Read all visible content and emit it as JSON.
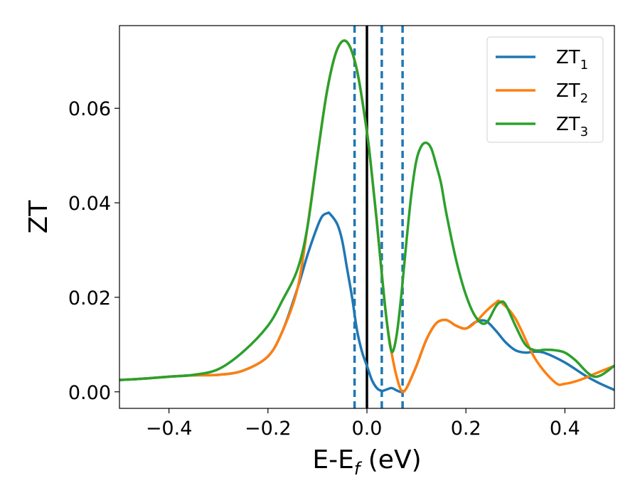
{
  "chart_data": {
    "type": "line",
    "xlabel_main": "E-E",
    "xlabel_sub": "f",
    "xlabel_unit": " (eV)",
    "ylabel": "ZT",
    "xlim": [
      -0.5,
      0.5
    ],
    "ylim": [
      -0.0035,
      0.0775
    ],
    "xticks": [
      -0.4,
      -0.2,
      0.0,
      0.2,
      0.4
    ],
    "xtick_labels": [
      "−0.4",
      "−0.2",
      "0.0",
      "0.2",
      "0.4"
    ],
    "yticks": [
      0.0,
      0.02,
      0.04,
      0.06
    ],
    "ytick_labels": [
      "0.00",
      "0.02",
      "0.04",
      "0.06"
    ],
    "grid": false,
    "legend_position": "top-right",
    "vlines": [
      {
        "x": 0.0,
        "style": "solid",
        "color": "#000000"
      },
      {
        "x": -0.025,
        "style": "dashed",
        "color": "#1f77b4"
      },
      {
        "x": 0.03,
        "style": "dashed",
        "color": "#1f77b4"
      },
      {
        "x": 0.072,
        "style": "dashed",
        "color": "#1f77b4"
      }
    ],
    "series": [
      {
        "name_main": "ZT",
        "name_sub": "1",
        "color": "#1f77b4",
        "x": [
          -0.5,
          -0.45,
          -0.4,
          -0.35,
          -0.3,
          -0.25,
          -0.2,
          -0.17,
          -0.14,
          -0.12,
          -0.1,
          -0.09,
          -0.08,
          -0.075,
          -0.06,
          -0.05,
          -0.04,
          -0.03,
          -0.02,
          -0.01,
          0.0,
          0.01,
          0.02,
          0.03,
          0.04,
          0.05,
          0.06,
          0.07,
          0.08,
          0.1,
          0.12,
          0.14,
          0.16,
          0.18,
          0.2,
          0.22,
          0.24,
          0.26,
          0.28,
          0.3,
          0.32,
          0.34,
          0.36,
          0.4,
          0.44,
          0.47,
          0.5
        ],
        "y": [
          0.0025,
          0.0028,
          0.0032,
          0.0035,
          0.0036,
          0.0045,
          0.0075,
          0.013,
          0.022,
          0.029,
          0.035,
          0.0372,
          0.0378,
          0.0377,
          0.0355,
          0.032,
          0.026,
          0.02,
          0.013,
          0.0085,
          0.0055,
          0.0025,
          0.0008,
          0.0002,
          0.0005,
          0.0008,
          0.0003,
          0.0,
          0.0008,
          0.0055,
          0.011,
          0.0145,
          0.0152,
          0.014,
          0.0134,
          0.0148,
          0.015,
          0.013,
          0.0105,
          0.0088,
          0.0083,
          0.0085,
          0.0082,
          0.0062,
          0.0035,
          0.0018,
          0.0004
        ]
      },
      {
        "name_main": "ZT",
        "name_sub": "2",
        "color": "#ff7f0e",
        "x": [
          -0.5,
          -0.45,
          -0.4,
          -0.35,
          -0.3,
          -0.25,
          -0.2,
          -0.17,
          -0.14,
          -0.12,
          -0.1,
          -0.08,
          -0.06,
          -0.04,
          -0.02,
          0.0,
          0.01,
          0.02,
          0.03,
          0.04,
          0.05,
          0.06,
          0.07,
          0.08,
          0.1,
          0.12,
          0.14,
          0.16,
          0.18,
          0.2,
          0.22,
          0.24,
          0.26,
          0.27,
          0.3,
          0.34,
          0.38,
          0.4,
          0.43,
          0.46,
          0.5
        ],
        "y": [
          0.0025,
          0.0028,
          0.0032,
          0.0035,
          0.0036,
          0.0045,
          0.0075,
          0.013,
          0.022,
          0.035,
          0.05,
          0.064,
          0.0725,
          0.074,
          0.068,
          0.055,
          0.046,
          0.036,
          0.025,
          0.015,
          0.0082,
          0.0032,
          0.0002,
          0.0008,
          0.0055,
          0.011,
          0.0145,
          0.0152,
          0.014,
          0.0134,
          0.0148,
          0.017,
          0.0188,
          0.019,
          0.0155,
          0.007,
          0.002,
          0.0017,
          0.0025,
          0.0038,
          0.0055
        ]
      },
      {
        "name_main": "ZT",
        "name_sub": "3",
        "color": "#2ca02c",
        "x": [
          -0.5,
          -0.45,
          -0.4,
          -0.35,
          -0.3,
          -0.25,
          -0.2,
          -0.17,
          -0.14,
          -0.12,
          -0.1,
          -0.08,
          -0.06,
          -0.04,
          -0.02,
          0.0,
          0.01,
          0.02,
          0.03,
          0.04,
          0.05,
          0.06,
          0.07,
          0.08,
          0.09,
          0.1,
          0.11,
          0.12,
          0.13,
          0.14,
          0.15,
          0.16,
          0.18,
          0.2,
          0.22,
          0.24,
          0.26,
          0.27,
          0.28,
          0.3,
          0.32,
          0.34,
          0.36,
          0.38,
          0.4,
          0.42,
          0.46,
          0.5
        ],
        "y": [
          0.0025,
          0.0028,
          0.0032,
          0.0036,
          0.0048,
          0.0085,
          0.014,
          0.0195,
          0.026,
          0.035,
          0.05,
          0.064,
          0.0725,
          0.074,
          0.068,
          0.055,
          0.046,
          0.036,
          0.025,
          0.015,
          0.0085,
          0.012,
          0.021,
          0.032,
          0.042,
          0.049,
          0.052,
          0.0527,
          0.0515,
          0.048,
          0.044,
          0.038,
          0.028,
          0.0205,
          0.0158,
          0.0145,
          0.018,
          0.019,
          0.0185,
          0.014,
          0.01,
          0.0088,
          0.0089,
          0.0088,
          0.0083,
          0.0068,
          0.0032,
          0.0055
        ]
      }
    ]
  }
}
